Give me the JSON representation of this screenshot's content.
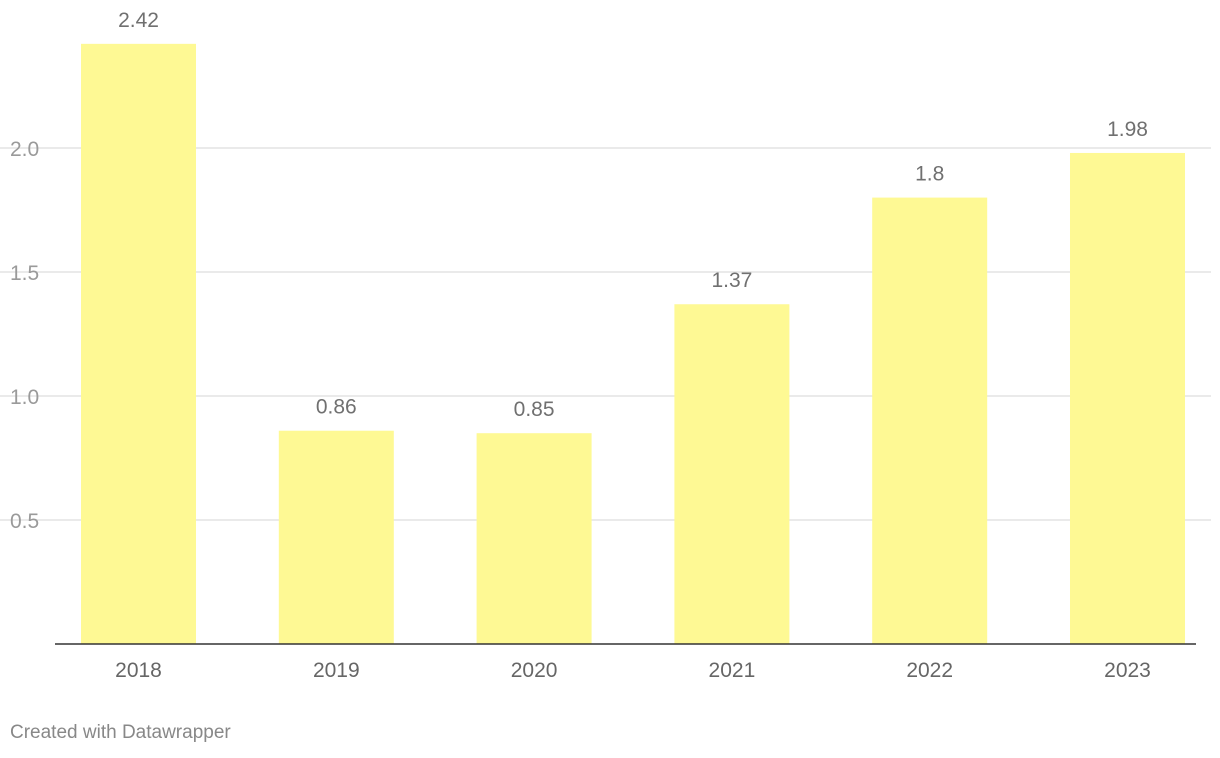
{
  "colors": {
    "bar": "#fef994",
    "gridline": "#e3e3e3",
    "baseline": "#333333"
  },
  "chart_data": {
    "type": "bar",
    "title": "",
    "xlabel": "",
    "ylabel": "",
    "categories": [
      "2018",
      "2019",
      "2020",
      "2021",
      "2022",
      "2023"
    ],
    "values": [
      2.42,
      0.86,
      0.85,
      1.37,
      1.8,
      1.98
    ],
    "value_labels": [
      "2.42",
      "0.86",
      "0.85",
      "1.37",
      "1.8",
      "1.98"
    ],
    "yticks": [
      0.5,
      1.0,
      1.5,
      2.0
    ],
    "ytick_labels": [
      "0.5",
      "1.0",
      "1.5",
      "2.0"
    ],
    "ylim": [
      0,
      2.42
    ],
    "grid": true
  },
  "footer": {
    "credit": "Created with Datawrapper"
  }
}
